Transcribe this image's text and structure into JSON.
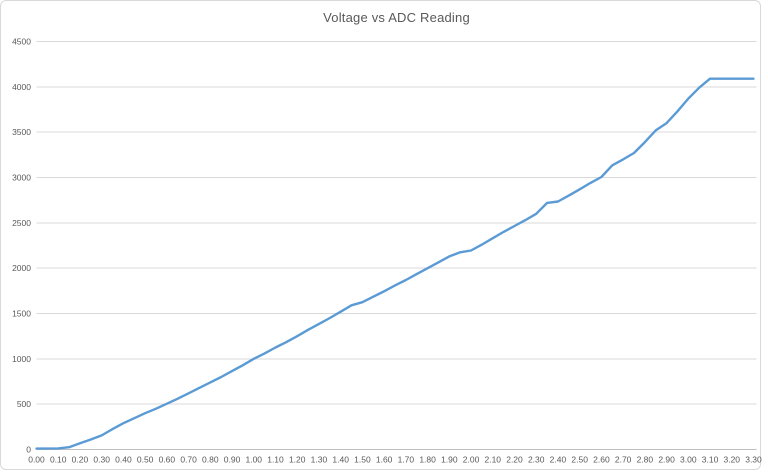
{
  "chart_data": {
    "type": "line",
    "title": "Voltage vs ADC Reading",
    "xlabel": "",
    "ylabel": "",
    "legend": "none",
    "grid": "horizontal",
    "xlim": [
      0.0,
      3.3
    ],
    "ylim": [
      0,
      4500
    ],
    "x_ticks": [
      "0.00",
      "0.10",
      "0.20",
      "0.30",
      "0.40",
      "0.50",
      "0.60",
      "0.70",
      "0.80",
      "0.90",
      "1.00",
      "1.10",
      "1.20",
      "1.30",
      "1.40",
      "1.50",
      "1.60",
      "1.70",
      "1.80",
      "1.90",
      "2.00",
      "2.10",
      "2.20",
      "2.30",
      "2.40",
      "2.50",
      "2.60",
      "2.70",
      "2.80",
      "2.90",
      "3.00",
      "3.10",
      "3.20",
      "3.30"
    ],
    "x_tick_values": [
      0.0,
      0.1,
      0.2,
      0.3,
      0.4,
      0.5,
      0.6,
      0.7,
      0.8,
      0.9,
      1.0,
      1.1,
      1.2,
      1.3,
      1.4,
      1.5,
      1.6,
      1.7,
      1.8,
      1.9,
      2.0,
      2.1,
      2.2,
      2.3,
      2.4,
      2.5,
      2.6,
      2.7,
      2.8,
      2.9,
      3.0,
      3.1,
      3.2,
      3.3
    ],
    "y_ticks": [
      "0",
      "500",
      "1000",
      "1500",
      "2000",
      "2500",
      "3000",
      "3500",
      "4000",
      "4500"
    ],
    "y_tick_values": [
      0,
      500,
      1000,
      1500,
      2000,
      2500,
      3000,
      3500,
      4000,
      4500
    ],
    "x": [
      0.0,
      0.05,
      0.1,
      0.15,
      0.2,
      0.25,
      0.3,
      0.35,
      0.4,
      0.45,
      0.5,
      0.55,
      0.6,
      0.65,
      0.7,
      0.75,
      0.8,
      0.85,
      0.9,
      0.95,
      1.0,
      1.05,
      1.1,
      1.15,
      1.2,
      1.25,
      1.3,
      1.35,
      1.4,
      1.45,
      1.5,
      1.55,
      1.6,
      1.65,
      1.7,
      1.75,
      1.8,
      1.85,
      1.9,
      1.95,
      2.0,
      2.05,
      2.1,
      2.15,
      2.2,
      2.25,
      2.3,
      2.35,
      2.4,
      2.45,
      2.5,
      2.55,
      2.6,
      2.65,
      2.7,
      2.75,
      2.8,
      2.85,
      2.9,
      2.95,
      3.0,
      3.05,
      3.1,
      3.15,
      3.2,
      3.25,
      3.3
    ],
    "series": [
      {
        "name": "ADC Reading",
        "values": [
          10,
          10,
          12,
          25,
          70,
          110,
          155,
          225,
          290,
          345,
          400,
          450,
          505,
          560,
          620,
          680,
          740,
          800,
          865,
          930,
          1000,
          1060,
          1125,
          1185,
          1250,
          1320,
          1385,
          1450,
          1520,
          1590,
          1625,
          1685,
          1745,
          1810,
          1870,
          1935,
          2000,
          2065,
          2130,
          2175,
          2195,
          2260,
          2330,
          2400,
          2465,
          2530,
          2600,
          2720,
          2735,
          2800,
          2870,
          2940,
          3005,
          3135,
          3200,
          3270,
          3390,
          3520,
          3600,
          3730,
          3870,
          3990,
          4090,
          4090,
          4090,
          4090,
          4090
        ]
      }
    ],
    "colors": {
      "line": "#5B9BD5",
      "gridline": "#D9D9D9",
      "axis_line": "#BFBFBF",
      "tick_text": "#595959",
      "title_text": "#595959",
      "background": "#FFFFFF",
      "frame_border": "#D9D9D9"
    }
  }
}
